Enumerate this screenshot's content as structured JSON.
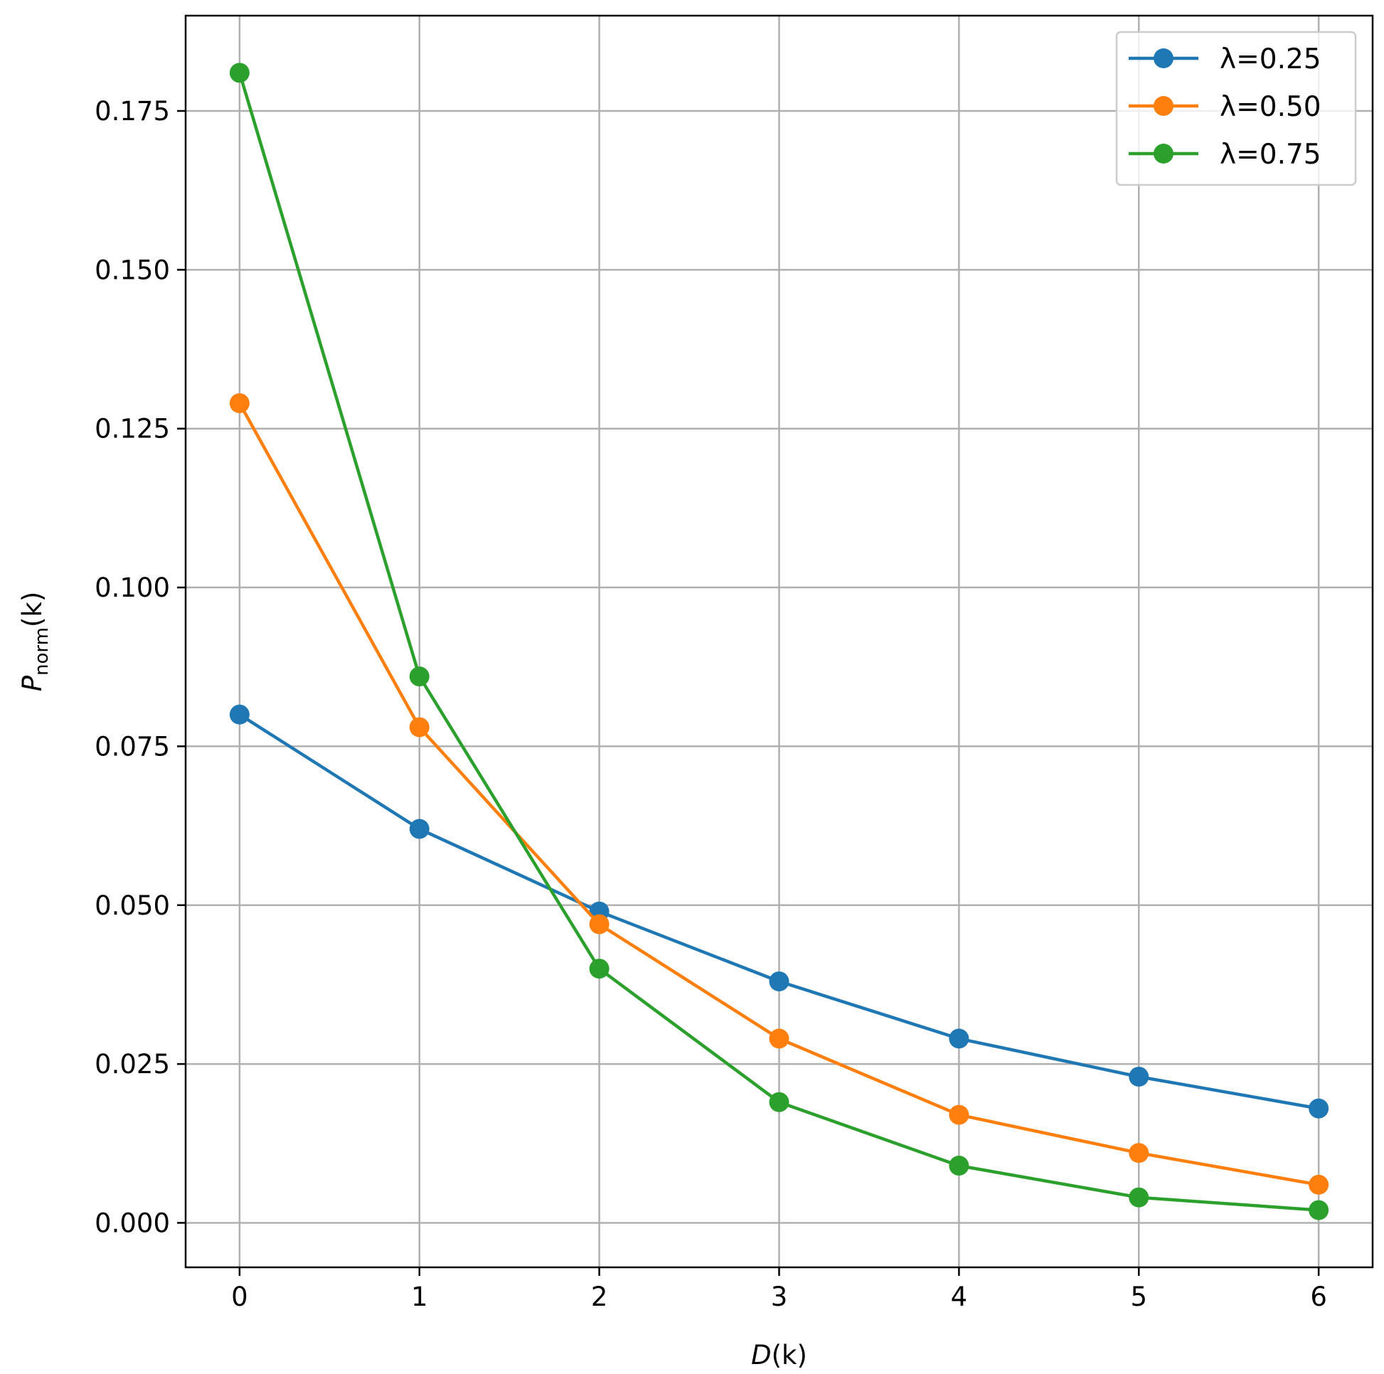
{
  "chart_data": {
    "type": "line",
    "xlabel_main": "D",
    "xlabel_rest": "(k)",
    "ylabel_main": "P",
    "ylabel_sub": "norm",
    "ylabel_rest": "(k)",
    "x": [
      0,
      1,
      2,
      3,
      4,
      5,
      6
    ],
    "x_tick_labels": [
      "0",
      "1",
      "2",
      "3",
      "4",
      "5",
      "6"
    ],
    "y_ticks": [
      0.0,
      0.025,
      0.05,
      0.075,
      0.1,
      0.125,
      0.15,
      0.175
    ],
    "y_tick_labels": [
      "0.000",
      "0.025",
      "0.050",
      "0.075",
      "0.100",
      "0.125",
      "0.150",
      "0.175"
    ],
    "xlim": [
      -0.3,
      6.3
    ],
    "ylim": [
      -0.007,
      0.19
    ],
    "grid": true,
    "legend_position": "top-right",
    "series": [
      {
        "name": "λ=0.25",
        "color": "#1f77b4",
        "values": [
          0.08,
          0.062,
          0.049,
          0.038,
          0.029,
          0.023,
          0.018
        ]
      },
      {
        "name": "λ=0.50",
        "color": "#ff7f0e",
        "values": [
          0.129,
          0.078,
          0.047,
          0.029,
          0.017,
          0.011,
          0.006
        ]
      },
      {
        "name": "λ=0.75",
        "color": "#2ca02c",
        "values": [
          0.181,
          0.086,
          0.04,
          0.019,
          0.009,
          0.004,
          0.002
        ]
      }
    ]
  }
}
